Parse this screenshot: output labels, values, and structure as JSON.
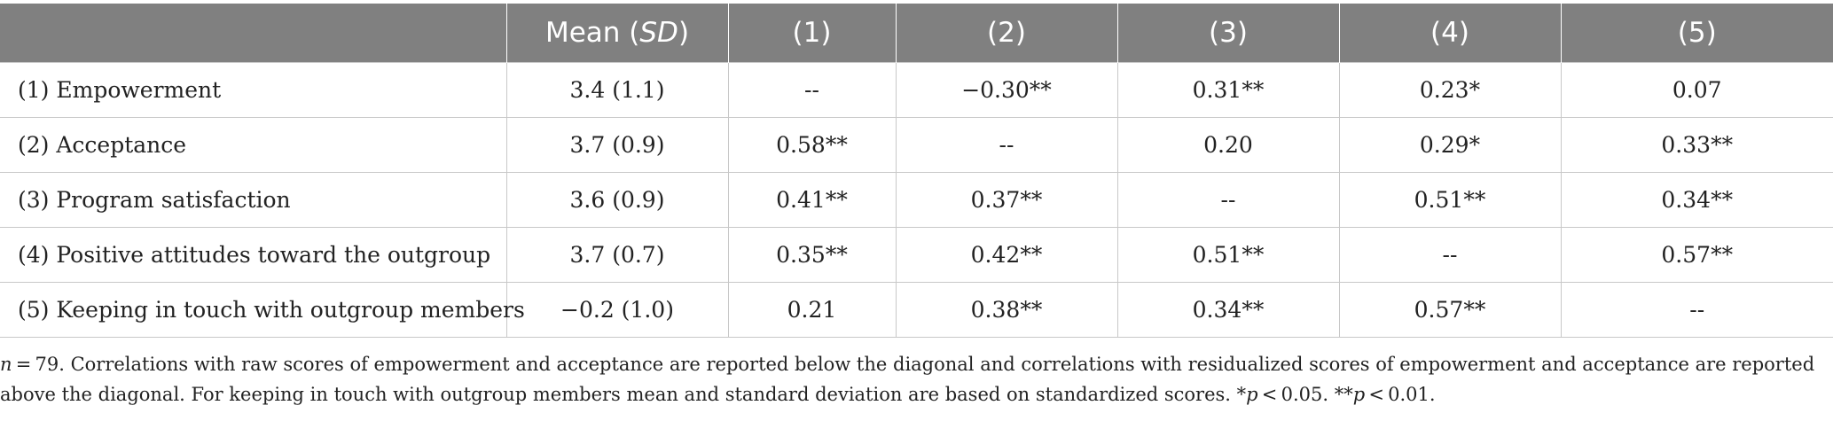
{
  "table": {
    "header": {
      "label": "",
      "mean_prefix": "Mean (",
      "mean_sd": "SD",
      "mean_suffix": ")",
      "cols": [
        "(1)",
        "(2)",
        "(3)",
        "(4)",
        "(5)"
      ]
    },
    "rows": [
      {
        "label": "(1) Empowerment",
        "mean": "3.4 (1.1)",
        "cells": [
          "--",
          "−0.30**",
          "0.31**",
          "0.23*",
          "0.07"
        ]
      },
      {
        "label": "(2) Acceptance",
        "mean": "3.7 (0.9)",
        "cells": [
          "0.58**",
          "--",
          "0.20",
          "0.29*",
          "0.33**"
        ]
      },
      {
        "label": "(3) Program satisfaction",
        "mean": "3.6 (0.9)",
        "cells": [
          "0.41**",
          "0.37**",
          "--",
          "0.51**",
          "0.34**"
        ]
      },
      {
        "label": "(4) Positive attitudes toward the outgroup",
        "mean": "3.7 (0.7)",
        "cells": [
          "0.35**",
          "0.42**",
          "0.51**",
          "--",
          "0.57**"
        ]
      },
      {
        "label": "(5) Keeping in touch with outgroup members",
        "mean": "−0.2 (1.0)",
        "cells": [
          "0.21",
          "0.38**",
          "0.34**",
          "0.57**",
          "--"
        ]
      }
    ]
  },
  "note": {
    "n_symbol": "n",
    "line1_rest": " = 79. Correlations with raw scores of empowerment and acceptance are reported below the diagonal and correlations with residualized scores of empowerment and acceptance are reported",
    "line2_start": "above the diagonal. For keeping in touch with outgroup members mean and standard deviation are based on standardized scores. *",
    "p_symbol": "p",
    "p1_rest": " < 0.05. **",
    "p2_rest": " < 0.01."
  },
  "colors": {
    "header_bg": "#808080",
    "header_text": "#ffffff",
    "grid": "#c8c8c8"
  }
}
